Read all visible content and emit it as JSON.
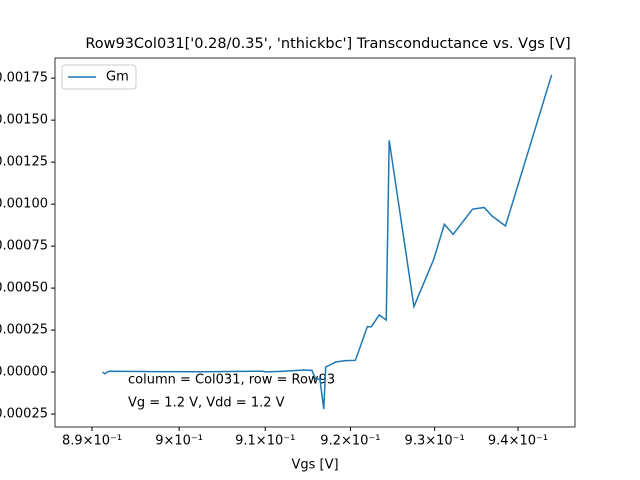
{
  "chart_data": {
    "type": "line",
    "title": "Row93Col031['0.28/0.35', 'nthickbc'] Transconductance vs. Vgs [V]",
    "x_label": "Vgs [V]",
    "xscale": "log",
    "x": [
      0.8912,
      0.89145,
      0.89193,
      0.89699,
      0.90291,
      0.90965,
      0.91012,
      0.91221,
      0.91453,
      0.91547,
      0.91593,
      0.9164,
      0.91686,
      0.91709,
      0.91826,
      0.91942,
      0.92059,
      0.922,
      0.92247,
      0.92341,
      0.92424,
      0.92459,
      0.92753,
      0.92988,
      0.93116,
      0.93221,
      0.93453,
      0.93593,
      0.93686,
      0.93849,
      0.94407
    ],
    "series": [
      {
        "name": "Gm",
        "color": "#1f77b4",
        "values": [
          0.0,
          -1e-05,
          5e-06,
          3e-06,
          2e-06,
          5e-06,
          1e-06,
          5e-06,
          1.2e-05,
          1e-05,
          -4.5e-05,
          -4e-05,
          -0.00022,
          3e-05,
          6e-05,
          6.8e-05,
          7e-05,
          0.00027,
          0.00027,
          0.00034,
          0.00031,
          0.00138,
          0.00039,
          0.00067,
          0.00088,
          0.00082,
          0.00097,
          0.00098,
          0.00093,
          0.00087,
          0.00177
        ]
      }
    ],
    "xlim": [
      0.88578,
      0.9469
    ],
    "ylim": [
      -0.000327,
      0.00187
    ],
    "xticks": [
      {
        "value": 0.89,
        "label": "8.9×10⁻¹"
      },
      {
        "value": 0.9,
        "label": "9×10⁻¹"
      },
      {
        "value": 0.91,
        "label": "9.1×10⁻¹"
      },
      {
        "value": 0.92,
        "label": "9.2×10⁻¹"
      },
      {
        "value": 0.93,
        "label": "9.3×10⁻¹"
      },
      {
        "value": 0.94,
        "label": "9.4×10⁻¹"
      }
    ],
    "yticks": [
      {
        "value": -0.00025,
        "label": "−0.00025"
      },
      {
        "value": 0,
        "label": "0.00000"
      },
      {
        "value": 0.00025,
        "label": "0.00025"
      },
      {
        "value": 0.0005,
        "label": "0.00050"
      },
      {
        "value": 0.00075,
        "label": "0.00075"
      },
      {
        "value": 0.001,
        "label": "0.00100"
      },
      {
        "value": 0.00125,
        "label": "0.00125"
      },
      {
        "value": 0.0015,
        "label": "0.00150"
      },
      {
        "value": 0.00175,
        "label": "0.00175"
      }
    ],
    "annotations": [
      "column = Col031, row = Row93",
      "Vg = 1.2 V, Vdd = 1.2 V"
    ],
    "legend": "upper left"
  }
}
